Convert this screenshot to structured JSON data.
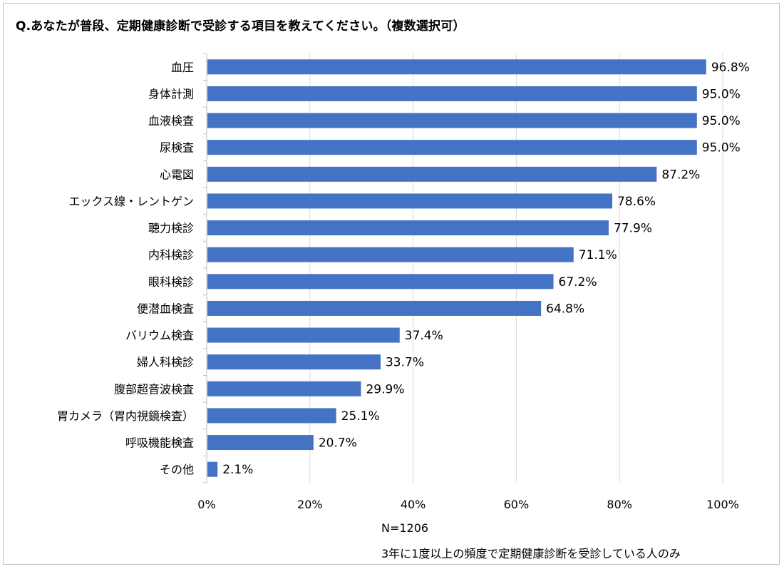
{
  "title": "Q.あなたが普段、定期健康診断で受診する項目を教えてください。（複数選択可）",
  "notes": {
    "n": "N=1206",
    "condition": "3年に1度以上の頻度で定期健康診断を受診している人のみ"
  },
  "colors": {
    "bar": "#4472c4",
    "grid": "#d9d9d9",
    "axis": "#bfbfbf"
  },
  "chart_data": {
    "type": "bar",
    "orientation": "horizontal",
    "categories": [
      "血圧",
      "身体計測",
      "血液検査",
      "尿検査",
      "心電図",
      "エックス線・レントゲン",
      "聴力検診",
      "内科検診",
      "眼科検診",
      "便潜血検査",
      "バリウム検査",
      "婦人科検診",
      "腹部超音波検査",
      "胃カメラ（胃内視鏡検査）",
      "呼吸機能検査",
      "その他"
    ],
    "values": [
      96.8,
      95.0,
      95.0,
      95.0,
      87.2,
      78.6,
      77.9,
      71.1,
      67.2,
      64.8,
      37.4,
      33.7,
      29.9,
      25.1,
      20.7,
      2.1
    ],
    "data_labels": [
      "96.8%",
      "95.0%",
      "95.0%",
      "95.0%",
      "87.2%",
      "78.6%",
      "77.9%",
      "71.1%",
      "67.2%",
      "64.8%",
      "37.4%",
      "33.7%",
      "29.9%",
      "25.1%",
      "20.7%",
      "2.1%"
    ],
    "xlim": [
      0,
      100
    ],
    "xticks": [
      0,
      20,
      40,
      60,
      80,
      100
    ],
    "xtick_labels": [
      "0%",
      "20%",
      "40%",
      "60%",
      "80%",
      "100%"
    ],
    "grid": true,
    "legend": "none"
  }
}
